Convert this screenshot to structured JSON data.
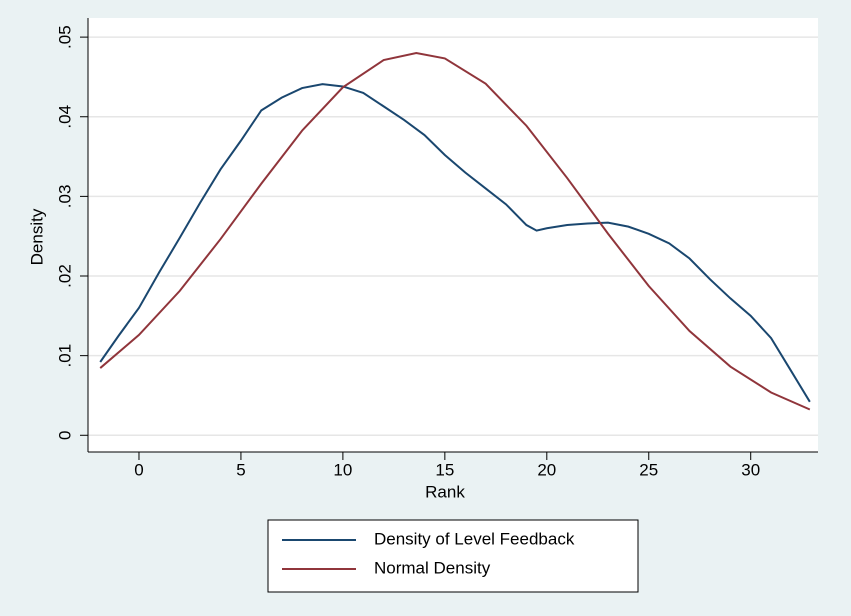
{
  "chart_data": {
    "type": "line",
    "xlabel": "Rank",
    "ylabel": "Density",
    "xlim": [
      -2.5,
      33.3
    ],
    "xticks": [
      0,
      5,
      10,
      15,
      20,
      25,
      30
    ],
    "ylim": [
      -0.0021,
      0.0524
    ],
    "yticks": [
      0,
      {
        "value": 0.01,
        "label": ".01"
      },
      {
        "value": 0.02,
        "label": ".02"
      },
      {
        "value": 0.03,
        "label": ".03"
      },
      {
        "value": 0.04,
        "label": ".04"
      },
      {
        "value": 0.05,
        "label": ".05"
      }
    ],
    "grid": true,
    "series": [
      {
        "name": "Density of Level Feedback",
        "color": "#1a476f",
        "x": [
          -1.9,
          -1,
          0,
          1,
          2,
          3,
          4,
          5,
          6,
          7,
          8,
          9,
          10,
          11,
          12,
          13,
          14,
          15,
          16,
          17,
          18,
          19,
          19.5,
          20,
          21,
          22,
          23,
          24,
          25,
          26,
          27,
          28,
          29,
          30,
          31,
          32,
          32.9
        ],
        "values": [
          0.0092,
          0.0125,
          0.016,
          0.0205,
          0.0248,
          0.0292,
          0.0334,
          0.037,
          0.0408,
          0.0424,
          0.0436,
          0.0441,
          0.0438,
          0.043,
          0.0413,
          0.0396,
          0.0377,
          0.0352,
          0.033,
          0.031,
          0.029,
          0.0264,
          0.0257,
          0.026,
          0.0264,
          0.0266,
          0.0267,
          0.0262,
          0.0253,
          0.0241,
          0.0222,
          0.0196,
          0.0172,
          0.015,
          0.0122,
          0.008,
          0.0042
        ]
      },
      {
        "name": "Normal Density",
        "color": "#90353b",
        "x": [
          -1.9,
          0,
          2,
          4,
          6,
          8,
          10,
          12,
          13.6,
          15,
          17,
          19,
          21,
          23,
          25,
          27,
          29,
          31,
          32.9
        ],
        "values": [
          0.00844,
          0.0126,
          0.01813,
          0.02464,
          0.0316,
          0.03826,
          0.0437,
          0.04712,
          0.048,
          0.04732,
          0.04415,
          0.03887,
          0.0323,
          0.02532,
          0.01874,
          0.01309,
          0.00863,
          0.00537,
          0.00324
        ]
      }
    ]
  }
}
